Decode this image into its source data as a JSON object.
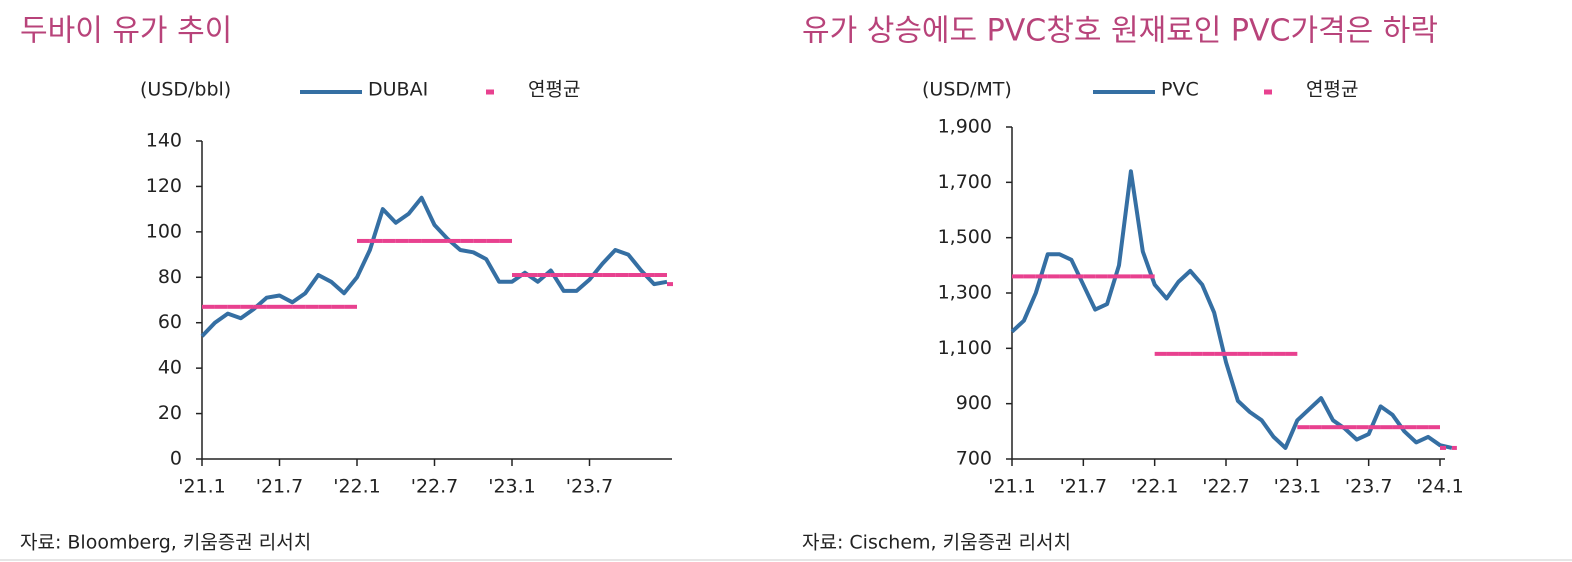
{
  "chart_data": [
    {
      "type": "line",
      "title": "두바이 유가 추이",
      "ylabel": "(USD/bbl)",
      "source": "자료: Bloomberg, 키움증권 리서치",
      "categories": [
        "'21.1",
        null,
        null,
        null,
        null,
        null,
        "'21.7",
        null,
        null,
        null,
        null,
        null,
        "'22.1",
        null,
        null,
        null,
        null,
        null,
        "'22.7",
        null,
        null,
        null,
        null,
        null,
        "'23.1",
        null,
        null,
        null,
        null,
        null,
        "'23.7",
        null,
        null,
        null,
        null,
        null,
        null
      ],
      "series": [
        {
          "name": "DUBAI",
          "color": "#356fa3",
          "values": [
            54,
            60,
            64,
            62,
            66,
            71,
            72,
            69,
            73,
            81,
            78,
            73,
            80,
            92,
            110,
            104,
            108,
            115,
            103,
            97,
            92,
            91,
            88,
            78,
            78,
            82,
            78,
            83,
            74,
            74,
            79,
            86,
            92,
            90,
            83,
            77,
            78
          ]
        },
        {
          "name": "연평균",
          "color": "#e8418f",
          "values": [
            67,
            67,
            67,
            67,
            67,
            67,
            67,
            67,
            67,
            67,
            67,
            67,
            96,
            96,
            96,
            96,
            96,
            96,
            96,
            96,
            96,
            96,
            96,
            96,
            81,
            81,
            81,
            81,
            81,
            81,
            81,
            81,
            81,
            81,
            81,
            81,
            77
          ]
        }
      ],
      "ylim": [
        0,
        140
      ],
      "yticks": [
        0,
        20,
        40,
        60,
        80,
        100,
        120,
        140
      ]
    },
    {
      "type": "line",
      "title": "유가 상승에도 PVC창호 원재료인 PVC가격은 하락",
      "ylabel": "(USD/MT)",
      "source": "자료: Cischem, 키움증권 리서치",
      "categories": [
        "'21.1",
        null,
        null,
        null,
        null,
        null,
        "'21.7",
        null,
        null,
        null,
        null,
        null,
        "'22.1",
        null,
        null,
        null,
        null,
        null,
        "'22.7",
        null,
        null,
        null,
        null,
        null,
        "'23.1",
        null,
        null,
        null,
        null,
        null,
        "'23.7",
        null,
        null,
        null,
        null,
        null,
        "'24.1",
        null
      ],
      "series": [
        {
          "name": "PVC",
          "color": "#356fa3",
          "values": [
            1160,
            1200,
            1300,
            1440,
            1440,
            1420,
            1330,
            1240,
            1260,
            1400,
            1740,
            1450,
            1330,
            1280,
            1340,
            1380,
            1330,
            1230,
            1050,
            910,
            870,
            840,
            780,
            740,
            840,
            880,
            920,
            840,
            810,
            770,
            790,
            890,
            860,
            800,
            760,
            780,
            750,
            740
          ]
        },
        {
          "name": "연평균",
          "color": "#e8418f",
          "values": [
            1360,
            1360,
            1360,
            1360,
            1360,
            1360,
            1360,
            1360,
            1360,
            1360,
            1360,
            1360,
            1080,
            1080,
            1080,
            1080,
            1080,
            1080,
            1080,
            1080,
            1080,
            1080,
            1080,
            1080,
            815,
            815,
            815,
            815,
            815,
            815,
            815,
            815,
            815,
            815,
            815,
            815,
            740,
            740
          ]
        }
      ],
      "ylim": [
        700,
        1900
      ],
      "yticks": [
        700,
        900,
        {
          "value": 1100,
          "label": "1,100"
        },
        {
          "value": 1300,
          "label": "1,300"
        },
        {
          "value": 1500,
          "label": "1,500"
        },
        {
          "value": 1700,
          "label": "1,700"
        },
        {
          "value": 1900,
          "label": "1,900"
        }
      ]
    }
  ]
}
